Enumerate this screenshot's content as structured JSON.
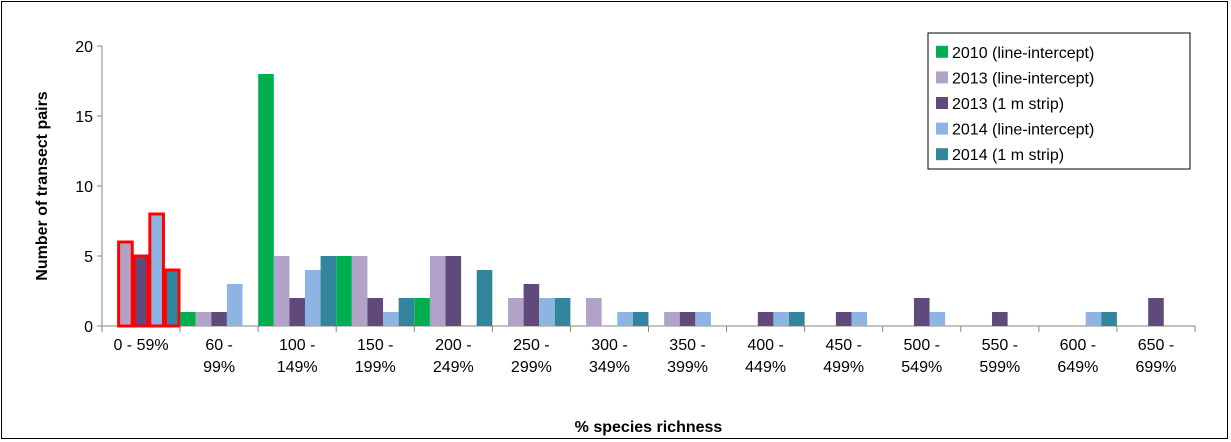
{
  "chart_data": {
    "type": "bar",
    "title": "",
    "xlabel": "% species richness",
    "ylabel": "Number of transect pairs",
    "ylim": [
      0,
      20
    ],
    "yticks": [
      0,
      5,
      10,
      15,
      20
    ],
    "grid": false,
    "legend_position": "top-right",
    "categories": [
      [
        "0 - 59%"
      ],
      [
        "60 -",
        "99%"
      ],
      [
        "100 -",
        "149%"
      ],
      [
        "150 -",
        "199%"
      ],
      [
        "200 -",
        "249%"
      ],
      [
        "250 -",
        "299%"
      ],
      [
        "300 -",
        "349%"
      ],
      [
        "350 -",
        "399%"
      ],
      [
        "400 -",
        "449%"
      ],
      [
        "450 -",
        "499%"
      ],
      [
        "500 -",
        "549%"
      ],
      [
        "550 -",
        "599%"
      ],
      [
        "600 -",
        "649%"
      ],
      [
        "650 -",
        "699%"
      ]
    ],
    "series": [
      {
        "name": "2010 (line-intercept)",
        "color": "#00b050",
        "values": [
          0,
          1,
          18,
          5,
          2,
          0,
          0,
          0,
          0,
          0,
          0,
          0,
          0,
          0
        ]
      },
      {
        "name": "2013 (line-intercept)",
        "color": "#b3a2c7",
        "values": [
          6,
          1,
          5,
          5,
          5,
          2,
          2,
          1,
          0,
          0,
          0,
          0,
          0,
          0
        ]
      },
      {
        "name": "2013 (1 m strip)",
        "color": "#604a7b",
        "values": [
          5,
          1,
          2,
          2,
          5,
          3,
          0,
          1,
          1,
          1,
          2,
          1,
          0,
          2
        ]
      },
      {
        "name": "2014 (line-intercept)",
        "color": "#8eb4e3",
        "values": [
          8,
          3,
          4,
          1,
          0,
          2,
          1,
          1,
          1,
          1,
          1,
          0,
          1,
          0
        ]
      },
      {
        "name": "2014 (1 m strip)",
        "color": "#31859c",
        "values": [
          4,
          0,
          5,
          2,
          4,
          2,
          1,
          0,
          1,
          0,
          0,
          0,
          1,
          0
        ]
      }
    ],
    "highlighted_category": "0 - 59%",
    "highlight_color": "#ff0000"
  }
}
